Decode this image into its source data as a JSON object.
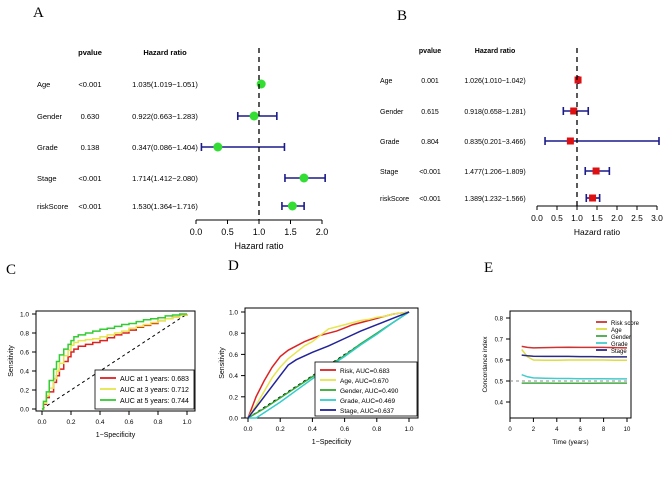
{
  "panels": {
    "A": "A",
    "B": "B",
    "C": "C",
    "D": "D",
    "E": "E"
  },
  "chart_data": [
    {
      "id": "A",
      "type": "scatter",
      "variant": "forest-plot",
      "header_pvalue": "pvalue",
      "header_hr": "Hazard ratio",
      "xlabel": "Hazard ratio",
      "xlim": [
        0.0,
        2.0
      ],
      "xticks": [
        "0.0",
        "0.5",
        "1.0",
        "1.5",
        "2.0"
      ],
      "reference_line": 1.0,
      "point_color": "#33dd33",
      "ci_color": "#1a1a8c",
      "rows": [
        {
          "name": "Age",
          "pvalue": "<0.001",
          "hr_text": "1.035(1.019−1.051)",
          "hr": 1.035,
          "lo": 1.019,
          "hi": 1.051
        },
        {
          "name": "Gender",
          "pvalue": "0.630",
          "hr_text": "0.922(0.663−1.283)",
          "hr": 0.922,
          "lo": 0.663,
          "hi": 1.283
        },
        {
          "name": "Grade",
          "pvalue": "0.138",
          "hr_text": "0.347(0.086−1.404)",
          "hr": 0.347,
          "lo": 0.086,
          "hi": 1.404
        },
        {
          "name": "Stage",
          "pvalue": "<0.001",
          "hr_text": "1.714(1.412−2.080)",
          "hr": 1.714,
          "lo": 1.412,
          "hi": 2.08
        },
        {
          "name": "riskScore",
          "pvalue": "<0.001",
          "hr_text": "1.530(1.364−1.716)",
          "hr": 1.53,
          "lo": 1.364,
          "hi": 1.716
        }
      ]
    },
    {
      "id": "B",
      "type": "scatter",
      "variant": "forest-plot",
      "header_pvalue": "pvalue",
      "header_hr": "Hazard ratio",
      "xlabel": "Hazard ratio",
      "xlim": [
        0.0,
        3.0
      ],
      "xticks": [
        "0.0",
        "0.5",
        "1.0",
        "1.5",
        "2.0",
        "2.5",
        "3.0"
      ],
      "reference_line": 1.0,
      "point_color": "#dd1111",
      "ci_color": "#1a1a8c",
      "rows": [
        {
          "name": "Age",
          "pvalue": "0.001",
          "hr_text": "1.026(1.010−1.042)",
          "hr": 1.026,
          "lo": 1.01,
          "hi": 1.042
        },
        {
          "name": "Gender",
          "pvalue": "0.615",
          "hr_text": "0.918(0.658−1.281)",
          "hr": 0.918,
          "lo": 0.658,
          "hi": 1.281
        },
        {
          "name": "Grade",
          "pvalue": "0.804",
          "hr_text": "0.835(0.201−3.466)",
          "hr": 0.835,
          "lo": 0.201,
          "hi": 3.466
        },
        {
          "name": "Stage",
          "pvalue": "<0.001",
          "hr_text": "1.477(1.206−1.809)",
          "hr": 1.477,
          "lo": 1.206,
          "hi": 1.809
        },
        {
          "name": "riskScore",
          "pvalue": "<0.001",
          "hr_text": "1.389(1.232−1.566)",
          "hr": 1.389,
          "lo": 1.232,
          "hi": 1.566
        }
      ]
    },
    {
      "id": "C",
      "type": "line",
      "variant": "roc",
      "xlabel": "1−Specificity",
      "ylabel": "Sensitivity",
      "xlim": [
        0.0,
        1.0
      ],
      "ylim": [
        0.0,
        1.0
      ],
      "xticks": [
        "0.0",
        "0.2",
        "0.4",
        "0.6",
        "0.8",
        "1.0"
      ],
      "yticks": [
        "0.0",
        "0.2",
        "0.4",
        "0.6",
        "0.8",
        "1.0"
      ],
      "legend_position": "bottom-right",
      "series": [
        {
          "name": "AUC at 1 years: 0.683",
          "color": "#dd2222",
          "x": [
            0,
            0.01,
            0.03,
            0.05,
            0.08,
            0.1,
            0.12,
            0.15,
            0.18,
            0.2,
            0.22,
            0.25,
            0.3,
            0.35,
            0.4,
            0.45,
            0.5,
            0.55,
            0.6,
            0.65,
            0.7,
            0.75,
            0.8,
            0.85,
            0.9,
            0.95,
            1.0
          ],
          "y": [
            0,
            0.05,
            0.12,
            0.18,
            0.28,
            0.35,
            0.42,
            0.5,
            0.55,
            0.6,
            0.63,
            0.66,
            0.68,
            0.7,
            0.72,
            0.75,
            0.78,
            0.8,
            0.83,
            0.86,
            0.88,
            0.9,
            0.93,
            0.95,
            0.97,
            0.99,
            1.0
          ]
        },
        {
          "name": "AUC at 3 years: 0.712",
          "color": "#e6e64d",
          "x": [
            0,
            0.01,
            0.03,
            0.05,
            0.08,
            0.1,
            0.12,
            0.15,
            0.18,
            0.2,
            0.22,
            0.25,
            0.3,
            0.35,
            0.4,
            0.45,
            0.5,
            0.55,
            0.6,
            0.65,
            0.7,
            0.75,
            0.8,
            0.85,
            0.9,
            0.95,
            1.0
          ],
          "y": [
            0,
            0.06,
            0.14,
            0.22,
            0.32,
            0.4,
            0.48,
            0.56,
            0.62,
            0.67,
            0.7,
            0.72,
            0.73,
            0.74,
            0.76,
            0.78,
            0.8,
            0.82,
            0.85,
            0.87,
            0.89,
            0.91,
            0.93,
            0.95,
            0.97,
            0.99,
            1.0
          ]
        },
        {
          "name": "AUC at 5 years: 0.744",
          "color": "#33cc33",
          "x": [
            0,
            0.01,
            0.03,
            0.05,
            0.08,
            0.1,
            0.12,
            0.15,
            0.18,
            0.2,
            0.22,
            0.25,
            0.3,
            0.35,
            0.4,
            0.45,
            0.5,
            0.55,
            0.6,
            0.65,
            0.7,
            0.75,
            0.8,
            0.85,
            0.9,
            0.95,
            1.0
          ],
          "y": [
            0,
            0.08,
            0.18,
            0.3,
            0.42,
            0.5,
            0.57,
            0.63,
            0.68,
            0.72,
            0.76,
            0.78,
            0.8,
            0.82,
            0.84,
            0.85,
            0.87,
            0.89,
            0.9,
            0.92,
            0.94,
            0.95,
            0.96,
            0.98,
            0.99,
            1.0,
            1.0
          ]
        }
      ]
    },
    {
      "id": "D",
      "type": "line",
      "variant": "roc",
      "xlabel": "1−Specificity",
      "ylabel": "Sensitivity",
      "xlim": [
        0.0,
        1.0
      ],
      "ylim": [
        0.0,
        1.0
      ],
      "xticks": [
        "0.0",
        "0.2",
        "0.4",
        "0.6",
        "0.8",
        "1.0"
      ],
      "yticks": [
        "0.0",
        "0.2",
        "0.4",
        "0.6",
        "0.8",
        "1.0"
      ],
      "legend_position": "bottom-right",
      "series": [
        {
          "name": "Risk, AUC=0.683",
          "color": "#dd2222",
          "x": [
            0,
            0.02,
            0.05,
            0.1,
            0.15,
            0.2,
            0.25,
            0.3,
            0.35,
            0.4,
            0.45,
            0.5,
            0.55,
            0.6,
            0.65,
            0.7,
            0.75,
            0.8,
            0.85,
            0.9,
            0.95,
            1.0
          ],
          "y": [
            0,
            0.08,
            0.2,
            0.35,
            0.48,
            0.58,
            0.64,
            0.68,
            0.72,
            0.75,
            0.78,
            0.8,
            0.82,
            0.85,
            0.88,
            0.9,
            0.92,
            0.94,
            0.96,
            0.98,
            0.99,
            1.0
          ]
        },
        {
          "name": "Age, AUC=0.670",
          "color": "#e6e64d",
          "x": [
            0,
            0.02,
            0.05,
            0.1,
            0.15,
            0.2,
            0.25,
            0.3,
            0.35,
            0.4,
            0.45,
            0.5,
            0.55,
            0.6,
            0.65,
            0.7,
            0.75,
            0.8,
            0.85,
            0.9,
            0.95,
            1.0
          ],
          "y": [
            0,
            0.05,
            0.12,
            0.25,
            0.38,
            0.48,
            0.56,
            0.62,
            0.68,
            0.72,
            0.78,
            0.84,
            0.86,
            0.88,
            0.9,
            0.92,
            0.93,
            0.95,
            0.96,
            0.98,
            0.99,
            1.0
          ]
        },
        {
          "name": "Gender, AUC=0.490",
          "color": "#33aa33",
          "x": [
            0,
            0.1,
            0.2,
            0.3,
            0.4,
            0.5,
            0.6,
            0.7,
            0.8,
            0.9,
            1.0
          ],
          "y": [
            0,
            0.09,
            0.19,
            0.29,
            0.39,
            0.49,
            0.59,
            0.7,
            0.8,
            0.9,
            1.0
          ]
        },
        {
          "name": "Grade, AUC=0.469",
          "color": "#33cccc",
          "x": [
            0,
            0.05,
            0.1,
            0.2,
            0.3,
            0.4,
            0.5,
            0.6,
            0.7,
            0.8,
            0.9,
            1.0
          ],
          "y": [
            0,
            0.0,
            0.05,
            0.15,
            0.26,
            0.37,
            0.48,
            0.58,
            0.69,
            0.79,
            0.9,
            1.0
          ]
        },
        {
          "name": "Stage, AUC=0.637",
          "color": "#222299",
          "x": [
            0,
            0.05,
            0.1,
            0.15,
            0.2,
            0.25,
            0.3,
            0.4,
            0.5,
            0.6,
            0.7,
            0.8,
            0.9,
            1.0
          ],
          "y": [
            0,
            0.1,
            0.2,
            0.3,
            0.4,
            0.5,
            0.55,
            0.62,
            0.68,
            0.75,
            0.82,
            0.88,
            0.94,
            1.0
          ]
        }
      ]
    },
    {
      "id": "E",
      "type": "line",
      "variant": "c-index",
      "xlabel": "Time (years)",
      "ylabel": "Concordance index",
      "xlim": [
        0,
        10
      ],
      "ylim": [
        0.4,
        0.8
      ],
      "xticks": [
        "0",
        "2",
        "4",
        "6",
        "8",
        "10"
      ],
      "yticks": [
        "0.4",
        "0.5",
        "0.6",
        "0.7",
        "0.8"
      ],
      "reference_line": 0.5,
      "legend_position": "top-right",
      "series": [
        {
          "name": "Risk score",
          "color": "#cc3333",
          "x": [
            1,
            1.5,
            2,
            3,
            4,
            5,
            6,
            7,
            8,
            9,
            10
          ],
          "y": [
            0.665,
            0.66,
            0.658,
            0.659,
            0.66,
            0.661,
            0.66,
            0.66,
            0.66,
            0.659,
            0.658
          ]
        },
        {
          "name": "Age",
          "color": "#dddd44",
          "x": [
            1,
            1.5,
            2,
            3,
            4,
            5,
            6,
            7,
            8,
            9,
            10
          ],
          "y": [
            0.65,
            0.615,
            0.6,
            0.599,
            0.599,
            0.6,
            0.6,
            0.6,
            0.6,
            0.599,
            0.599
          ]
        },
        {
          "name": "Gender",
          "color": "#44aa44",
          "x": [
            1,
            1.5,
            2,
            3,
            4,
            5,
            6,
            7,
            8,
            9,
            10
          ],
          "y": [
            0.49,
            0.49,
            0.49,
            0.49,
            0.489,
            0.489,
            0.489,
            0.489,
            0.49,
            0.49,
            0.49
          ]
        },
        {
          "name": "Grade",
          "color": "#44cccc",
          "x": [
            1,
            1.5,
            2,
            3,
            4,
            5,
            6,
            7,
            8,
            9,
            10
          ],
          "y": [
            0.53,
            0.52,
            0.515,
            0.513,
            0.512,
            0.512,
            0.511,
            0.511,
            0.511,
            0.51,
            0.51
          ]
        },
        {
          "name": "Stage",
          "color": "#2a2a88",
          "x": [
            1,
            1.5,
            2,
            3,
            4,
            5,
            6,
            7,
            8,
            9,
            10
          ],
          "y": [
            0.623,
            0.62,
            0.618,
            0.617,
            0.617,
            0.617,
            0.616,
            0.616,
            0.615,
            0.615,
            0.615
          ]
        }
      ]
    }
  ]
}
